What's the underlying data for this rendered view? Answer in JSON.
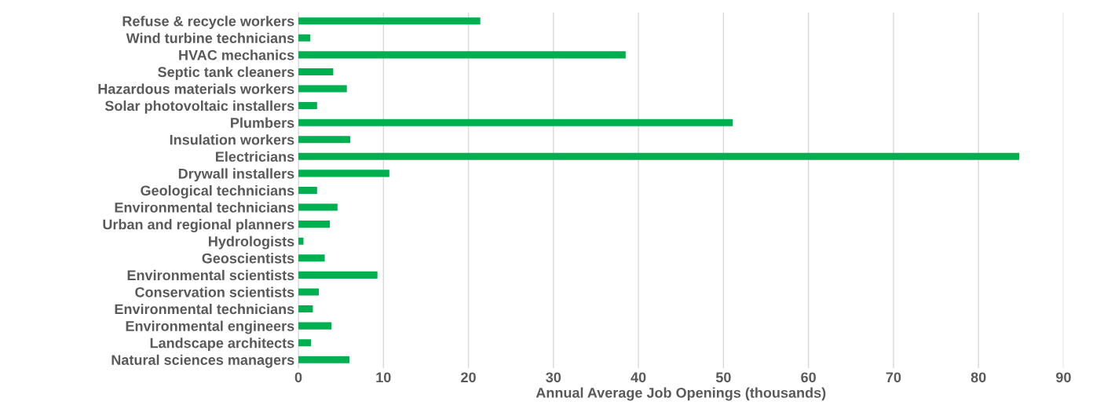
{
  "chart_data": {
    "type": "bar",
    "orientation": "horizontal",
    "xlabel": "Annual Average Job Openings (thousands)",
    "categories": [
      "Refuse & recycle workers",
      "Wind turbine technicians",
      "HVAC mechanics",
      "Septic tank cleaners",
      "Hazardous materials workers",
      "Solar photovoltaic installers",
      "Plumbers",
      "Insulation workers",
      "Electricians",
      "Drywall installers",
      "Geological technicians",
      "Environmental technicians",
      "Urban and regional planners",
      "Hydrologists",
      "Geoscientists",
      "Environmental scientists",
      "Conservation scientists",
      "Environmental technicians",
      "Environmental engineers",
      "Landscape architects",
      "Natural sciences managers"
    ],
    "values": [
      21.4,
      1.4,
      38.5,
      4.1,
      5.7,
      2.2,
      51.1,
      6.1,
      84.8,
      10.7,
      2.2,
      4.6,
      3.7,
      0.6,
      3.1,
      9.3,
      2.4,
      1.7,
      3.9,
      1.5,
      6.0
    ],
    "color": "#00b050",
    "xlim": [
      0,
      90
    ],
    "xticks": [
      0,
      10,
      20,
      30,
      40,
      50,
      60,
      70,
      80,
      90
    ],
    "grid": "x"
  }
}
